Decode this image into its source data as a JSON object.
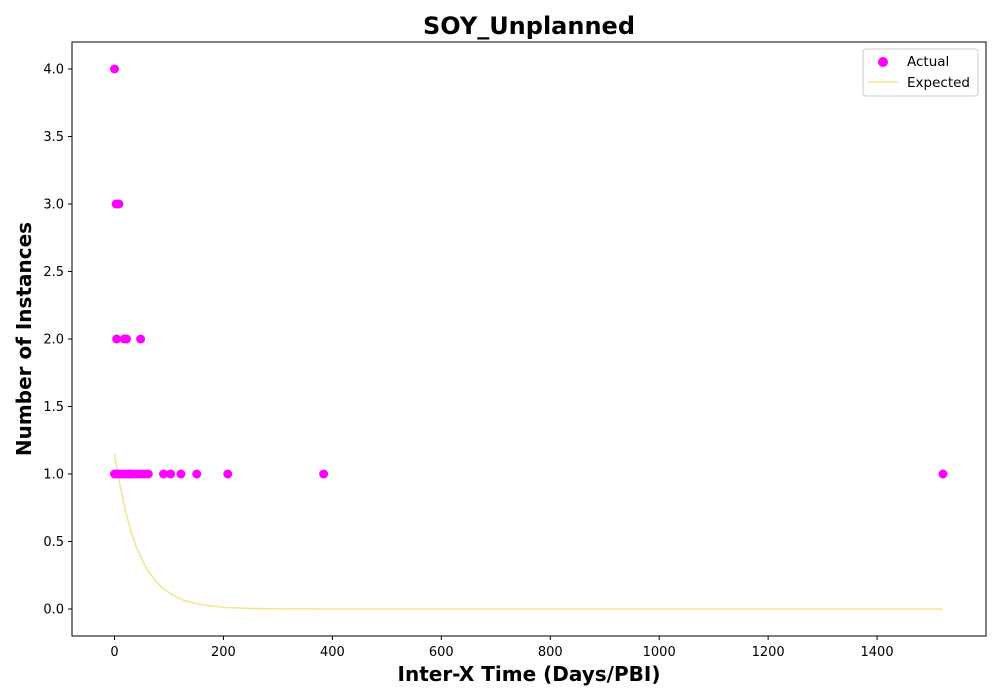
{
  "chart_data": {
    "type": "scatter",
    "title": "SOY_Unplanned",
    "xlabel": "Inter-X Time (Days/PBI)",
    "ylabel": "Number of Instances",
    "xlim": [
      -78,
      1600
    ],
    "ylim": [
      -0.2,
      4.2
    ],
    "xticks": [
      0,
      200,
      400,
      600,
      800,
      1000,
      1200,
      1400
    ],
    "yticks": [
      0.0,
      0.5,
      1.0,
      1.5,
      2.0,
      2.5,
      3.0,
      3.5,
      4.0
    ],
    "grid": false,
    "legend_position": "top-right",
    "series": [
      {
        "name": "Actual",
        "kind": "scatter",
        "color": "#ff00ff",
        "points": [
          [
            0,
            4
          ],
          [
            3,
            3
          ],
          [
            8,
            3
          ],
          [
            4,
            2
          ],
          [
            18,
            2
          ],
          [
            22,
            2
          ],
          [
            48,
            2
          ],
          [
            0,
            1
          ],
          [
            5,
            1
          ],
          [
            10,
            1
          ],
          [
            14,
            1
          ],
          [
            20,
            1
          ],
          [
            26,
            1
          ],
          [
            30,
            1
          ],
          [
            34,
            1
          ],
          [
            40,
            1
          ],
          [
            46,
            1
          ],
          [
            52,
            1
          ],
          [
            56,
            1
          ],
          [
            62,
            1
          ],
          [
            90,
            1
          ],
          [
            103,
            1
          ],
          [
            122,
            1
          ],
          [
            151,
            1
          ],
          [
            208,
            1
          ],
          [
            384,
            1
          ],
          [
            1521,
            1
          ]
        ]
      },
      {
        "name": "Expected",
        "kind": "line",
        "color": "#f0e68c",
        "points": [
          [
            0,
            1.15
          ],
          [
            10,
            0.92
          ],
          [
            20,
            0.73
          ],
          [
            30,
            0.58
          ],
          [
            40,
            0.46
          ],
          [
            50,
            0.37
          ],
          [
            60,
            0.29
          ],
          [
            75,
            0.21
          ],
          [
            90,
            0.15
          ],
          [
            110,
            0.096
          ],
          [
            130,
            0.061
          ],
          [
            160,
            0.031
          ],
          [
            200,
            0.012
          ],
          [
            250,
            0.004
          ],
          [
            300,
            0.001
          ],
          [
            400,
            0.0
          ],
          [
            600,
            0.0
          ],
          [
            800,
            0.0
          ],
          [
            1000,
            0.0
          ],
          [
            1200,
            0.0
          ],
          [
            1400,
            0.0
          ],
          [
            1521,
            0.0
          ]
        ]
      }
    ]
  }
}
